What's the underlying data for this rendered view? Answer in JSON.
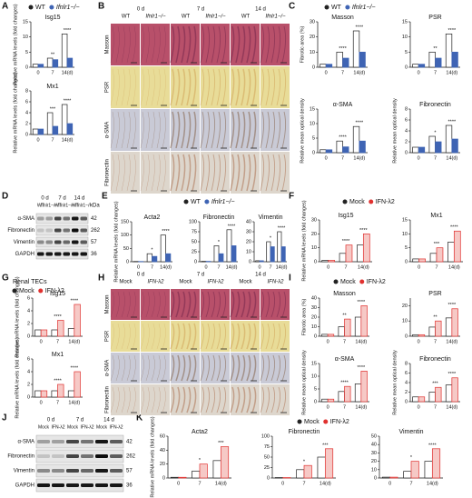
{
  "panel_letters": [
    "A",
    "B",
    "C",
    "D",
    "E",
    "F",
    "G",
    "H",
    "I",
    "J",
    "K"
  ],
  "renal_tecs": "Renal TECs",
  "micrographs": [
    {
      "days": [
        "0 d",
        "7 d",
        "14 d"
      ],
      "groups": [
        "WT",
        "Ifnlr1−/−"
      ],
      "stains": [
        "Masson",
        "PSR",
        "α-SMA",
        "Fibronectin"
      ]
    },
    {
      "days": [
        "0 d",
        "7 d",
        "14 d"
      ],
      "groups": [
        "Mock",
        "IFN-λ2"
      ],
      "stains": [
        "Masson",
        "PSR",
        "α-SMA",
        "Fibronectin"
      ]
    }
  ],
  "blots": [
    {
      "days": [
        "0 d",
        "7 d",
        "14 d"
      ],
      "groups": [
        "WT",
        "Ifnlr1−/−"
      ],
      "unit": "kDa",
      "proteins": [
        "α-SMA",
        "Fibronectin",
        "Vimentin",
        "GAPDH"
      ],
      "kda": [
        42,
        262,
        57,
        36
      ]
    },
    {
      "days": [
        "0 d",
        "7 d",
        "14 d"
      ],
      "groups": [
        "Mock",
        "IFN-λ2"
      ],
      "proteins": [
        "α-SMA",
        "Fibronectin",
        "Vimentin",
        "GAPDH"
      ],
      "kda": [
        42,
        262,
        57,
        36
      ]
    }
  ],
  "chart_data": [
    {
      "type": "bar",
      "title": "Isg15",
      "ylabel": "Relative mRNA levels (fold changes)",
      "categories": [
        "0",
        "7",
        "14(d)"
      ],
      "series": [
        {
          "name": "WT",
          "color": "#222222",
          "fill": "#ffffff",
          "values": [
            1,
            3,
            11
          ]
        },
        {
          "name": "Ifnlr1−/−",
          "color": "#3f64b4",
          "fill": "#3f64b4",
          "values": [
            1,
            2.5,
            3
          ]
        }
      ],
      "ylim": [
        0,
        15
      ],
      "yticks": [
        0,
        5,
        10,
        15
      ],
      "annotations": [
        {
          "at": "7",
          "text": "**"
        },
        {
          "at": "14(d)",
          "text": "****"
        }
      ]
    },
    {
      "type": "bar",
      "title": "Mx1",
      "ylabel": "Relative mRNA levels (fold changes)",
      "categories": [
        "0",
        "7",
        "14(d)"
      ],
      "series": [
        {
          "color": "#222222",
          "fill": "#ffffff",
          "values": [
            1,
            4,
            5.5
          ]
        },
        {
          "color": "#3f64b4",
          "fill": "#3f64b4",
          "values": [
            1,
            1.5,
            2
          ]
        }
      ],
      "ylim": [
        0,
        8
      ],
      "yticks": [
        0,
        2,
        4,
        6,
        8
      ],
      "annotations": [
        {
          "at": "7",
          "text": "***"
        },
        {
          "at": "14(d)",
          "text": "****"
        }
      ]
    },
    {
      "type": "bar",
      "title": "Masson",
      "ylabel": "Fibrotic area (%)",
      "categories": [
        "0",
        "7",
        "14(d)"
      ],
      "series": [
        {
          "name": "WT",
          "color": "#222222",
          "fill": "#ffffff",
          "values": [
            2,
            10,
            24
          ]
        },
        {
          "name": "Ifnlr1−/−",
          "color": "#3f64b4",
          "fill": "#3f64b4",
          "values": [
            2,
            6,
            10
          ]
        }
      ],
      "ylim": [
        0,
        30
      ],
      "yticks": [
        0,
        10,
        20,
        30
      ],
      "annotations": [
        {
          "at": "7",
          "text": "****"
        },
        {
          "at": "14(d)",
          "text": "****"
        }
      ]
    },
    {
      "type": "bar",
      "title": "PSR",
      "categories": [
        "0",
        "7",
        "14(d)"
      ],
      "series": [
        {
          "color": "#222222",
          "fill": "#ffffff",
          "values": [
            1,
            5,
            11
          ]
        },
        {
          "color": "#3f64b4",
          "fill": "#3f64b4",
          "values": [
            1,
            3,
            5
          ]
        }
      ],
      "ylim": [
        0,
        15
      ],
      "yticks": [
        0,
        5,
        10,
        15
      ],
      "annotations": [
        {
          "at": "7",
          "text": "**"
        },
        {
          "at": "14(d)",
          "text": "****"
        }
      ]
    },
    {
      "type": "bar",
      "title": "α-SMA",
      "ylabel": "Relative mean optical density",
      "categories": [
        "0",
        "7",
        "14(d)"
      ],
      "series": [
        {
          "color": "#222222",
          "fill": "#ffffff",
          "values": [
            1,
            4,
            9
          ]
        },
        {
          "color": "#3f64b4",
          "fill": "#3f64b4",
          "values": [
            1,
            2,
            4
          ]
        }
      ],
      "ylim": [
        0,
        15
      ],
      "yticks": [
        0,
        5,
        10,
        15
      ],
      "annotations": [
        {
          "at": "7",
          "text": "****"
        },
        {
          "at": "14(d)",
          "text": "****"
        }
      ]
    },
    {
      "type": "bar",
      "title": "Fibronectin",
      "ylabel": "Relative mean optical density",
      "categories": [
        "0",
        "7",
        "14(d)"
      ],
      "series": [
        {
          "color": "#222222",
          "fill": "#ffffff",
          "values": [
            1,
            3,
            5
          ]
        },
        {
          "color": "#3f64b4",
          "fill": "#3f64b4",
          "values": [
            1,
            2,
            2.5
          ]
        }
      ],
      "ylim": [
        0,
        8
      ],
      "yticks": [
        0,
        2,
        4,
        6,
        8
      ],
      "annotations": [
        {
          "at": "7",
          "text": "*"
        },
        {
          "at": "14(d)",
          "text": "****"
        }
      ]
    },
    {
      "type": "bar",
      "title": "Acta2",
      "ylabel": "Relative mRNA levels (fold changes)",
      "categories": [
        "0",
        "7",
        "14(d)"
      ],
      "series": [
        {
          "name": "WT",
          "color": "#222222",
          "fill": "#ffffff",
          "values": [
            1,
            30,
            100
          ]
        },
        {
          "name": "Ifnlr1−/−",
          "color": "#3f64b4",
          "fill": "#3f64b4",
          "values": [
            1,
            20,
            30
          ]
        }
      ],
      "ylim": [
        0,
        150
      ],
      "yticks": [
        0,
        50,
        100,
        150
      ],
      "annotations": [
        {
          "at": "7",
          "text": "*"
        },
        {
          "at": "14(d)",
          "text": "****"
        }
      ]
    },
    {
      "type": "bar",
      "title": "Fibronectin",
      "categories": [
        "0",
        "7",
        "14(d)"
      ],
      "series": [
        {
          "color": "#222222",
          "fill": "#ffffff",
          "values": [
            1,
            40,
            80
          ]
        },
        {
          "color": "#3f64b4",
          "fill": "#3f64b4",
          "values": [
            1,
            20,
            40
          ]
        }
      ],
      "ylim": [
        0,
        100
      ],
      "yticks": [
        0,
        25,
        50,
        75,
        100
      ],
      "annotations": [
        {
          "at": "7",
          "text": "*"
        },
        {
          "at": "14(d)",
          "text": "****"
        }
      ]
    },
    {
      "type": "bar",
      "title": "Vimentin",
      "categories": [
        "0",
        "7",
        "14(d)"
      ],
      "series": [
        {
          "color": "#222222",
          "fill": "#ffffff",
          "values": [
            1,
            20,
            30
          ]
        },
        {
          "color": "#3f64b4",
          "fill": "#3f64b4",
          "values": [
            1,
            15,
            15
          ]
        }
      ],
      "ylim": [
        0,
        40
      ],
      "yticks": [
        0,
        10,
        20,
        30,
        40
      ],
      "annotations": [
        {
          "at": "7",
          "text": "*"
        },
        {
          "at": "14(d)",
          "text": "****"
        }
      ]
    },
    {
      "type": "bar",
      "title": "Isg15",
      "ylabel": "Relative mRNA levels (fold changes)",
      "categories": [
        "0",
        "7",
        "14(d)"
      ],
      "series": [
        {
          "name": "Mock",
          "color": "#222222",
          "fill": "#ffffff",
          "values": [
            1,
            6,
            12
          ]
        },
        {
          "name": "IFN-λ2",
          "color": "#e0312f",
          "fill": "#f6c9c6",
          "values": [
            1,
            12,
            20
          ]
        }
      ],
      "ylim": [
        0,
        30
      ],
      "yticks": [
        0,
        10,
        20,
        30
      ],
      "annotations": [
        {
          "at": "7",
          "text": "****"
        },
        {
          "at": "14(d)",
          "text": "****"
        }
      ]
    },
    {
      "type": "bar",
      "title": "Mx1",
      "categories": [
        "0",
        "7",
        "14(d)"
      ],
      "series": [
        {
          "color": "#222222",
          "fill": "#ffffff",
          "values": [
            1,
            3,
            7
          ]
        },
        {
          "color": "#e0312f",
          "fill": "#f6c9c6",
          "values": [
            1,
            5,
            11
          ]
        }
      ],
      "ylim": [
        0,
        15
      ],
      "yticks": [
        0,
        5,
        10,
        15
      ],
      "annotations": [
        {
          "at": "7",
          "text": "***"
        },
        {
          "at": "14(d)",
          "text": "****"
        }
      ]
    },
    {
      "type": "bar",
      "title": "Isg15",
      "ylabel": "Relative mRNA levels (fold changes)",
      "categories": [
        "0",
        "7",
        "14(d)"
      ],
      "series": [
        {
          "name": "Mock",
          "color": "#222222",
          "fill": "#ffffff",
          "values": [
            1,
            1,
            1.2
          ]
        },
        {
          "name": "IFN-λ2",
          "color": "#e0312f",
          "fill": "#f6c9c6",
          "values": [
            1,
            2.5,
            5
          ]
        }
      ],
      "ylim": [
        0,
        6
      ],
      "yticks": [
        0,
        2,
        4,
        6
      ],
      "annotations": [
        {
          "at": "7",
          "text": "****"
        },
        {
          "at": "14(d)",
          "text": "****"
        }
      ]
    },
    {
      "type": "bar",
      "title": "Mx1",
      "ylabel": "Relative mRNA levels (fold changes)",
      "categories": [
        "0",
        "7",
        "14(d)"
      ],
      "series": [
        {
          "color": "#222222",
          "fill": "#ffffff",
          "values": [
            1,
            1,
            1
          ]
        },
        {
          "color": "#e0312f",
          "fill": "#f6c9c6",
          "values": [
            1,
            2,
            4
          ]
        }
      ],
      "ylim": [
        0,
        6
      ],
      "yticks": [
        0,
        2,
        4,
        6
      ],
      "annotations": [
        {
          "at": "7",
          "text": "****"
        },
        {
          "at": "14(d)",
          "text": "****"
        }
      ]
    },
    {
      "type": "bar",
      "title": "Masson",
      "ylabel": "Fibrotic area (%)",
      "categories": [
        "0",
        "7",
        "14(d)"
      ],
      "series": [
        {
          "name": "Mock",
          "color": "#222222",
          "fill": "#ffffff",
          "values": [
            2,
            10,
            20
          ]
        },
        {
          "name": "IFN-λ2",
          "color": "#e0312f",
          "fill": "#f6c9c6",
          "values": [
            2,
            18,
            32
          ]
        }
      ],
      "ylim": [
        0,
        40
      ],
      "yticks": [
        0,
        10,
        20,
        30,
        40
      ],
      "annotations": [
        {
          "at": "7",
          "text": "**"
        },
        {
          "at": "14(d)",
          "text": "****"
        }
      ]
    },
    {
      "type": "bar",
      "title": "PSR",
      "categories": [
        "0",
        "7",
        "14(d)"
      ],
      "series": [
        {
          "color": "#222222",
          "fill": "#ffffff",
          "values": [
            1,
            6,
            12
          ]
        },
        {
          "color": "#e0312f",
          "fill": "#f6c9c6",
          "values": [
            1,
            10,
            18
          ]
        }
      ],
      "ylim": [
        0,
        25
      ],
      "yticks": [
        0,
        10,
        20
      ],
      "annotations": [
        {
          "at": "7",
          "text": "**"
        },
        {
          "at": "14(d)",
          "text": "****"
        }
      ]
    },
    {
      "type": "bar",
      "title": "α-SMA",
      "ylabel": "Relative mean optical density",
      "categories": [
        "0",
        "7",
        "14(d)"
      ],
      "series": [
        {
          "color": "#222222",
          "fill": "#ffffff",
          "values": [
            1,
            4,
            7
          ]
        },
        {
          "color": "#e0312f",
          "fill": "#f6c9c6",
          "values": [
            1,
            6,
            12
          ]
        }
      ],
      "ylim": [
        0,
        15
      ],
      "yticks": [
        0,
        5,
        10,
        15
      ],
      "annotations": [
        {
          "at": "7",
          "text": "****"
        },
        {
          "at": "14(d)",
          "text": "****"
        }
      ]
    },
    {
      "type": "bar",
      "title": "Fibronectin",
      "ylabel": "Relative mean optical density",
      "categories": [
        "0",
        "7",
        "14(d)"
      ],
      "series": [
        {
          "color": "#222222",
          "fill": "#ffffff",
          "values": [
            1,
            2,
            3.5
          ]
        },
        {
          "color": "#e0312f",
          "fill": "#f6c9c6",
          "values": [
            1,
            3,
            5
          ]
        }
      ],
      "ylim": [
        0,
        8
      ],
      "yticks": [
        0,
        2,
        4,
        6,
        8
      ],
      "annotations": [
        {
          "at": "7",
          "text": "***"
        },
        {
          "at": "14(d)",
          "text": "****"
        }
      ]
    },
    {
      "type": "bar",
      "title": "Acta2",
      "ylabel": "Relative mRNA levels (fold changes)",
      "categories": [
        "0",
        "7",
        "14(d)"
      ],
      "series": [
        {
          "name": "Mock",
          "color": "#222222",
          "fill": "#ffffff",
          "values": [
            1,
            10,
            25
          ]
        },
        {
          "name": "IFN-λ2",
          "color": "#e0312f",
          "fill": "#f6c9c6",
          "values": [
            1,
            20,
            45
          ]
        }
      ],
      "ylim": [
        0,
        60
      ],
      "yticks": [
        0,
        20,
        40,
        60
      ],
      "annotations": [
        {
          "at": "7",
          "text": "*"
        },
        {
          "at": "14(d)",
          "text": "***"
        }
      ]
    },
    {
      "type": "bar",
      "title": "Fibronectin",
      "categories": [
        "0",
        "7",
        "14(d)"
      ],
      "series": [
        {
          "color": "#222222",
          "fill": "#ffffff",
          "values": [
            1,
            20,
            50
          ]
        },
        {
          "color": "#e0312f",
          "fill": "#f6c9c6",
          "values": [
            1,
            30,
            70
          ]
        }
      ],
      "ylim": [
        0,
        100
      ],
      "yticks": [
        0,
        25,
        50,
        75,
        100
      ],
      "annotations": [
        {
          "at": "7",
          "text": "*"
        },
        {
          "at": "14(d)",
          "text": "***"
        }
      ]
    },
    {
      "type": "bar",
      "title": "Vimentin",
      "categories": [
        "0",
        "7",
        "14(d)"
      ],
      "series": [
        {
          "color": "#222222",
          "fill": "#ffffff",
          "values": [
            1,
            8,
            20
          ]
        },
        {
          "color": "#e0312f",
          "fill": "#f6c9c6",
          "values": [
            1,
            20,
            35
          ]
        }
      ],
      "ylim": [
        0,
        50
      ],
      "yticks": [
        0,
        10,
        20,
        30,
        40,
        50
      ],
      "annotations": [
        {
          "at": "7",
          "text": "*"
        },
        {
          "at": "14(d)",
          "text": "****"
        }
      ]
    }
  ]
}
